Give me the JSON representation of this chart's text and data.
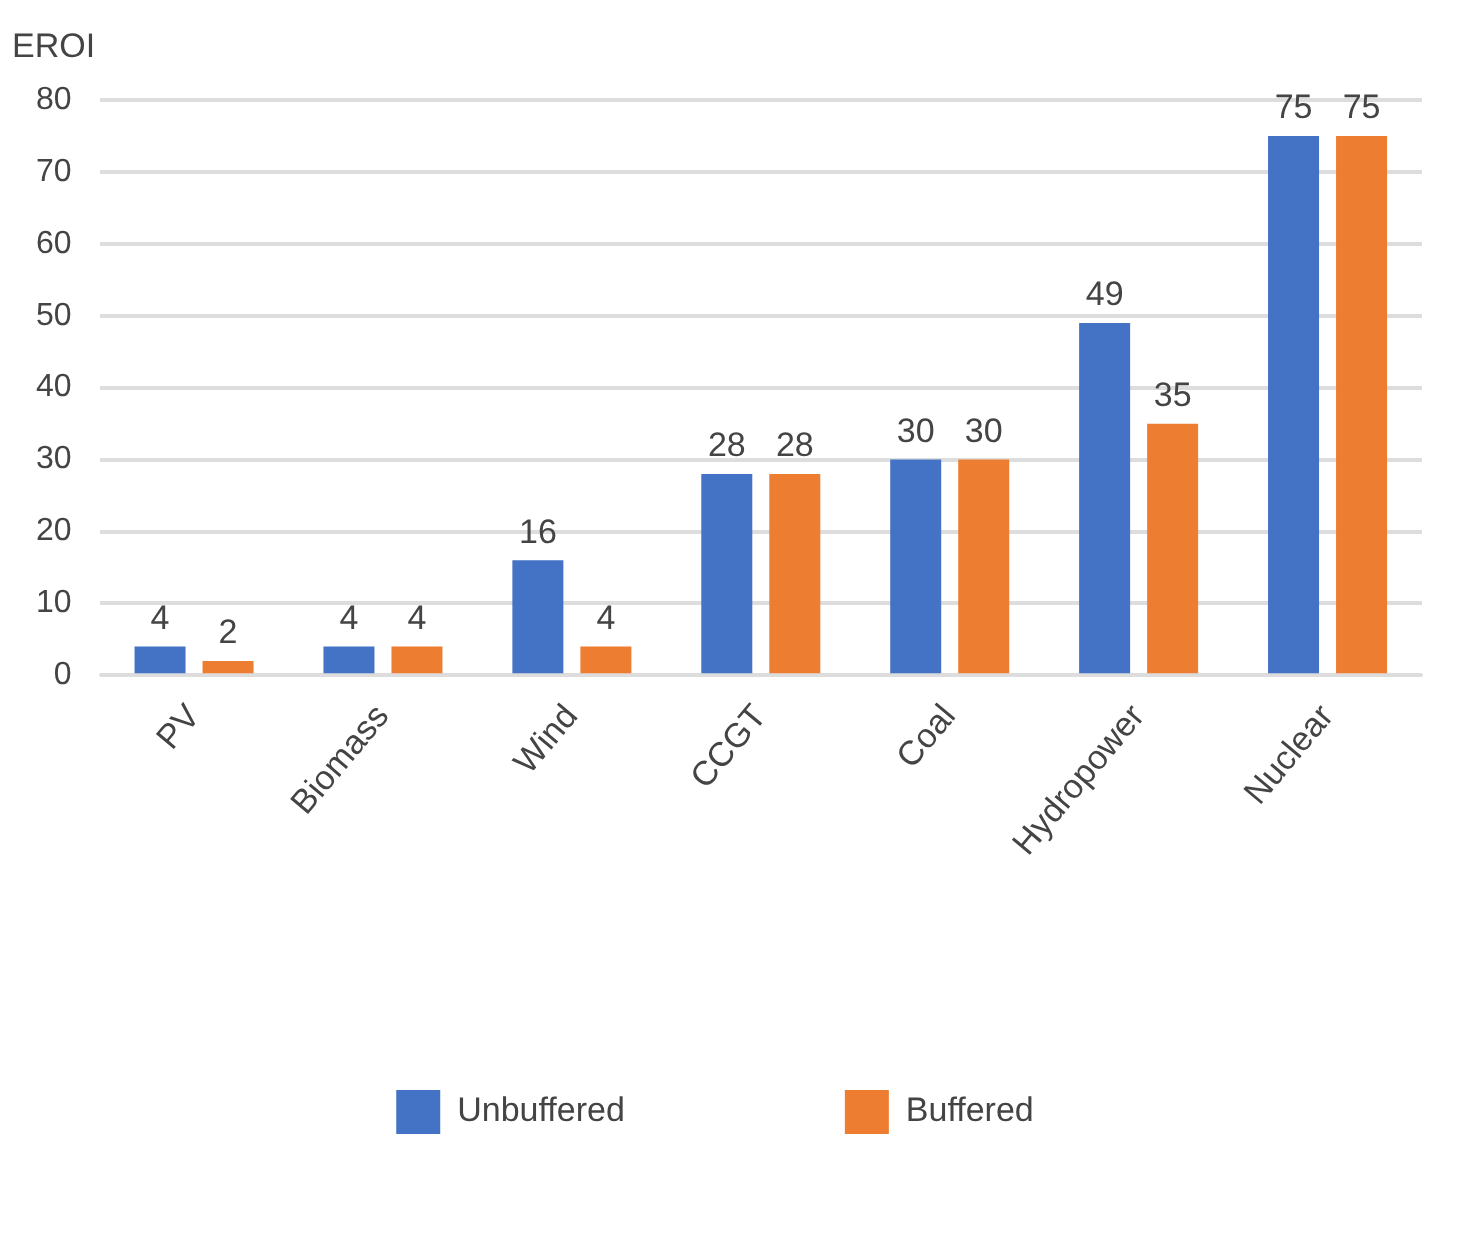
{
  "chart_data": {
    "type": "bar",
    "ylabel": "EROI",
    "categories": [
      "PV",
      "Biomass",
      "Wind",
      "CCGT",
      "Coal",
      "Hydropower",
      "Nuclear"
    ],
    "series": [
      {
        "name": "Unbuffered",
        "color": "#4472c4",
        "values": [
          4,
          4,
          16,
          28,
          30,
          49,
          75
        ]
      },
      {
        "name": "Buffered",
        "color": "#ed7d31",
        "values": [
          2,
          4,
          4,
          28,
          30,
          35,
          75
        ]
      }
    ],
    "ylim": [
      0,
      80
    ],
    "yticks": [
      0,
      10,
      20,
      30,
      40,
      50,
      60,
      70,
      80
    ],
    "grid": "y",
    "legend": "bottom",
    "data_labels": true
  }
}
